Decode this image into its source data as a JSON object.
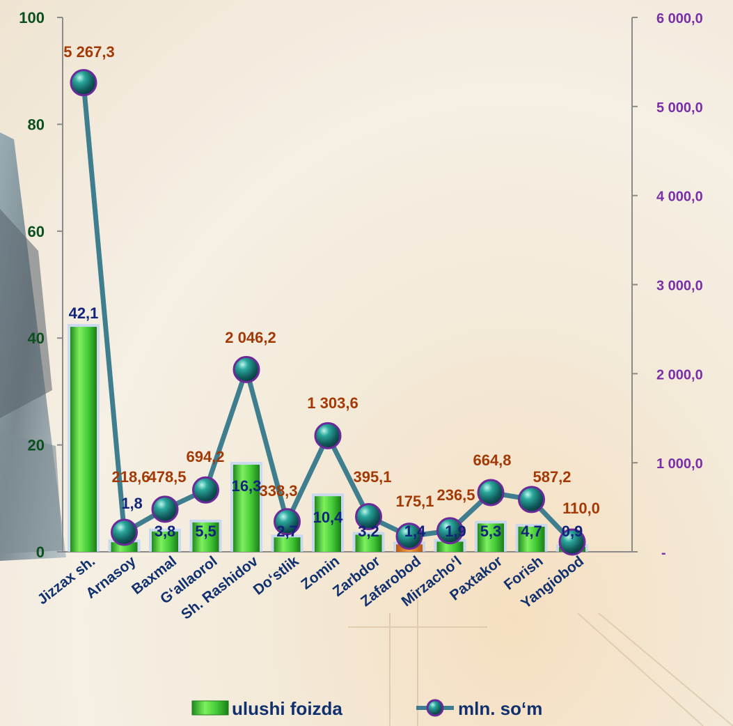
{
  "chart_data": {
    "type": "bar",
    "categories": [
      "Jizzax  sh.",
      "Arnasoy",
      "Baxmal",
      "G‘allaorol",
      "Sh. Rashidov",
      "Do‘stlik",
      "Zomin",
      "Zarbdor",
      "Zafarobod",
      "Mirzacho‘l",
      "Paxtakor",
      "Forish",
      "Yangiobod"
    ],
    "ylim": [
      0,
      100
    ],
    "y2lim": [
      0,
      6000
    ],
    "y_ticks": [
      "0",
      "20",
      "40",
      "60",
      "80",
      "100"
    ],
    "y2_ticks": [
      "-",
      "1 000,0",
      "2 000,0",
      "3 000,0",
      "4 000,0",
      "5 000,0",
      "6 000,0"
    ],
    "legend_position": "bottom",
    "series": [
      {
        "name": "ulushi foizda",
        "kind": "bar",
        "axis": "left",
        "color": "#39c22f",
        "values": [
          42.1,
          1.8,
          3.8,
          5.5,
          16.3,
          2.7,
          10.4,
          3.2,
          1.4,
          1.9,
          5.3,
          4.7,
          0.9
        ],
        "labels": [
          "42,1",
          "1,8",
          "3,8",
          "5,5",
          "16,3",
          "2,7",
          "10,4",
          "3,2",
          "1,4",
          "1,9",
          "5,3",
          "4,7",
          "0,9"
        ]
      },
      {
        "name": "mln. so‘m",
        "kind": "line",
        "axis": "right",
        "color": "#3f7e8e",
        "marker_color": "#1f7a7a",
        "values": [
          5267.3,
          218.6,
          478.5,
          694.2,
          2046.2,
          338.3,
          1303.6,
          395.1,
          175.1,
          236.5,
          664.8,
          587.2,
          110.0
        ],
        "labels": [
          "5 267,3",
          "218,6",
          "478,5",
          "694,2",
          "2 046,2",
          "338,3",
          "1 303,6",
          "395,1",
          "175,1",
          "236,5",
          "664,8",
          "587,2",
          "110,0"
        ]
      }
    ]
  }
}
